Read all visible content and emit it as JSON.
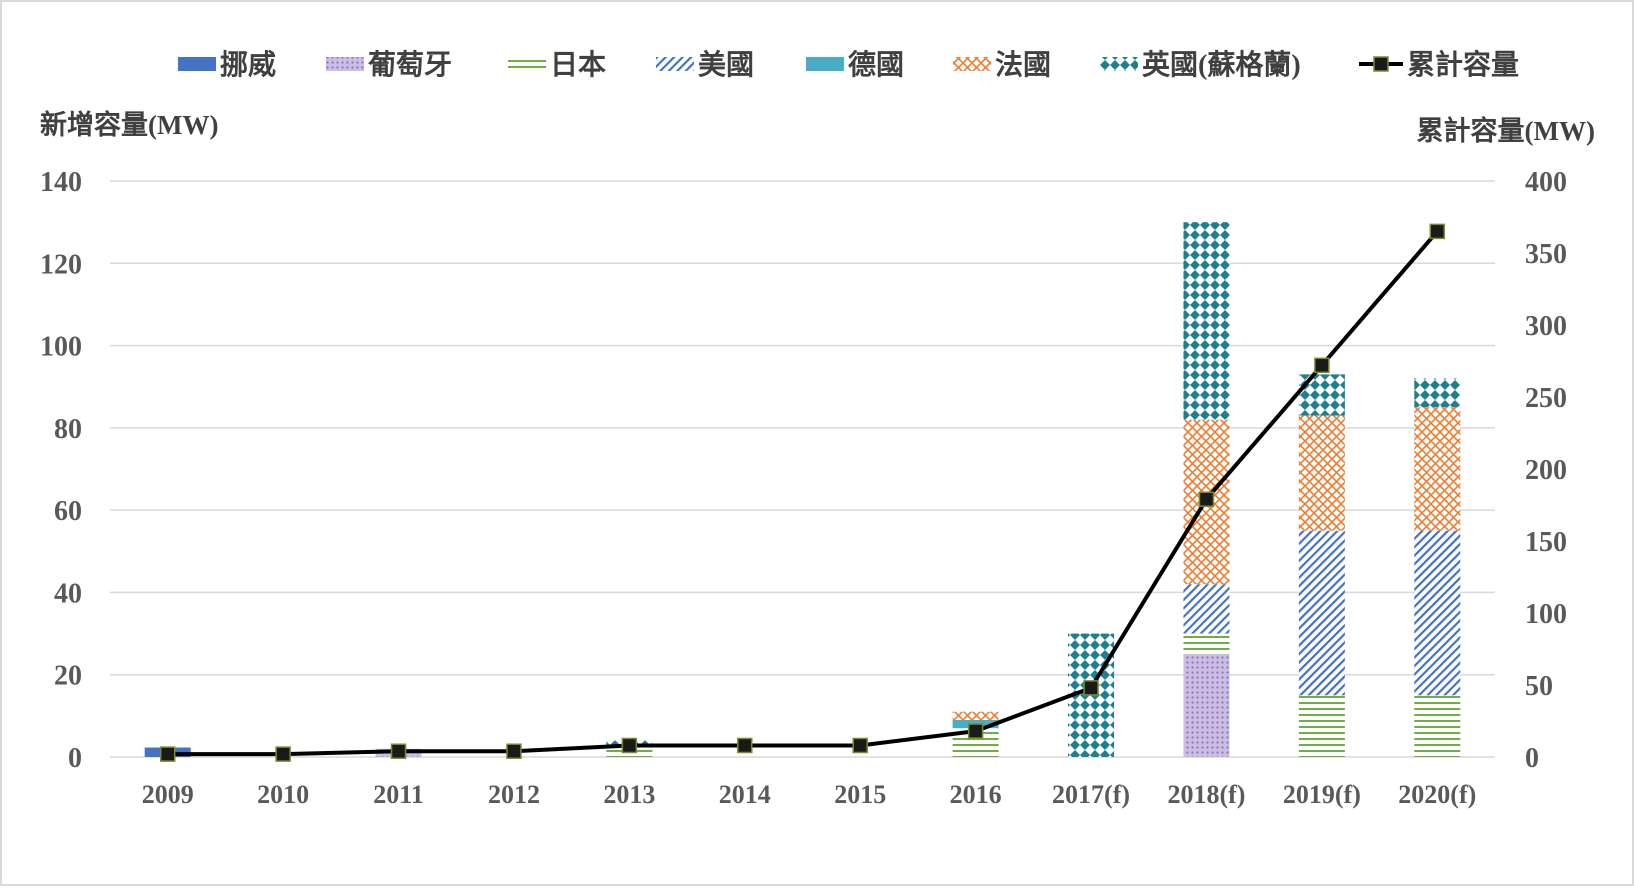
{
  "chart_data": {
    "type": "bar",
    "subtype": "stacked-bar-with-line",
    "categories": [
      "2009",
      "2010",
      "2011",
      "2012",
      "2013",
      "2014",
      "2015",
      "2016",
      "2017(f)",
      "2018(f)",
      "2019(f)",
      "2020(f)"
    ],
    "series": [
      {
        "name": "挪威",
        "type": "bar",
        "axis": "left",
        "color": "#4472c4",
        "pattern": "solid",
        "values": [
          2.3,
          0,
          0,
          0,
          0,
          0,
          0,
          0,
          0,
          0,
          0,
          0
        ]
      },
      {
        "name": "葡萄牙",
        "type": "bar",
        "axis": "left",
        "color": "#a98fcf",
        "pattern": "dots",
        "values": [
          0,
          0,
          2,
          0,
          0,
          0,
          0,
          0,
          0,
          25,
          0,
          0
        ]
      },
      {
        "name": "日本",
        "type": "bar",
        "axis": "left",
        "color": "#70ad47",
        "pattern": "horizontal-lines",
        "values": [
          0,
          0,
          0,
          0,
          3,
          0,
          0,
          7,
          0,
          5,
          15,
          15
        ]
      },
      {
        "name": "美國",
        "type": "bar",
        "axis": "left",
        "color": "#4472c4",
        "pattern": "diagonal-lines",
        "values": [
          0,
          0,
          0,
          0,
          0,
          0,
          0,
          0,
          0,
          12,
          40,
          40
        ]
      },
      {
        "name": "德國",
        "type": "bar",
        "axis": "left",
        "color": "#4bacc6",
        "pattern": "solid",
        "values": [
          0,
          0,
          0,
          0,
          0,
          0,
          0,
          2,
          0,
          0,
          0,
          0
        ]
      },
      {
        "name": "法國",
        "type": "bar",
        "axis": "left",
        "color": "#ed7d31",
        "pattern": "crosshatch",
        "values": [
          0,
          0,
          0,
          0,
          0,
          0,
          0,
          2,
          0,
          40,
          28,
          30
        ]
      },
      {
        "name": "英國(蘇格蘭)",
        "type": "bar",
        "axis": "left",
        "color": "#1f7f8f",
        "pattern": "checker",
        "values": [
          0,
          0,
          0,
          0,
          1,
          0,
          0,
          0,
          30,
          48,
          10,
          7
        ]
      },
      {
        "name": "累計容量",
        "type": "line",
        "axis": "right",
        "color": "#000000",
        "marker_color": "#1a1a1a",
        "values": [
          2,
          2,
          4,
          4,
          8,
          8,
          8,
          18,
          48,
          179,
          272,
          365
        ]
      }
    ],
    "legend": {
      "position": "top"
    },
    "y_left": {
      "label": "新增容量(MW)",
      "min": 0,
      "max": 140,
      "step": 20,
      "ticks": [
        "0",
        "20",
        "40",
        "60",
        "80",
        "100",
        "120",
        "140"
      ]
    },
    "y_right": {
      "label": "累計容量(MW)",
      "min": 0,
      "max": 400,
      "step": 50,
      "ticks": [
        "0",
        "50",
        "100",
        "150",
        "200",
        "250",
        "300",
        "350",
        "400"
      ]
    },
    "grid": true
  }
}
